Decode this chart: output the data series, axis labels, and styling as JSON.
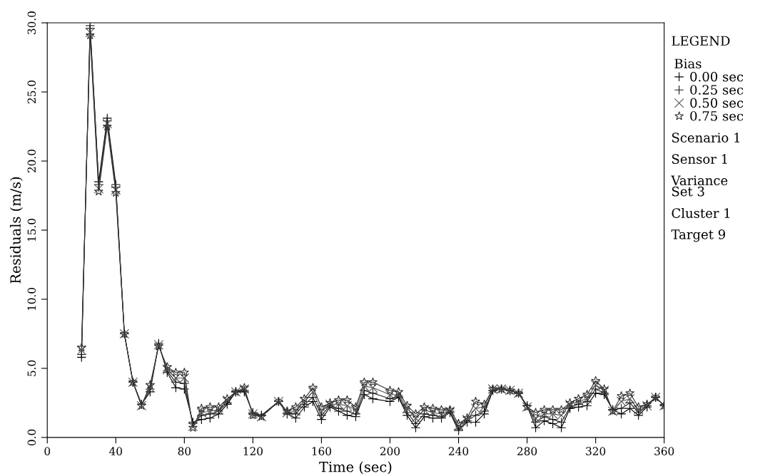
{
  "chart_data": {
    "type": "line",
    "xlabel": "Time (sec)",
    "ylabel": "Residuals (m/s)",
    "legend_title": "Bias",
    "legend": "right",
    "xlim": [
      0,
      360
    ],
    "xticks": [
      0,
      40,
      80,
      120,
      160,
      200,
      240,
      280,
      320,
      360
    ],
    "ylim": [
      0,
      30
    ],
    "yticks": [
      {
        "value": 0,
        "label": "0.0"
      },
      {
        "value": 5,
        "label": "5.0"
      },
      {
        "value": 10,
        "label": "10.0"
      },
      {
        "value": 15,
        "label": "15.0"
      },
      {
        "value": 20,
        "label": "20.0"
      },
      {
        "value": 25,
        "label": "25.0"
      },
      {
        "value": 30,
        "label": "30.0"
      }
    ],
    "grid": false,
    "line_style": "solid",
    "annotations": [
      "LEGEND",
      "Scenario 1",
      "Sensor 1",
      "Variance\nSet 3",
      "Cluster 1",
      "Target 9"
    ],
    "x": [
      20,
      25,
      30,
      35,
      40,
      45,
      50,
      55,
      60,
      65,
      70,
      75,
      80,
      85,
      90,
      95,
      100,
      105,
      110,
      115,
      120,
      125,
      135,
      140,
      145,
      150,
      155,
      160,
      165,
      170,
      175,
      180,
      185,
      190,
      200,
      205,
      210,
      215,
      220,
      225,
      230,
      235,
      240,
      245,
      250,
      255,
      260,
      265,
      270,
      275,
      280,
      285,
      290,
      295,
      300,
      305,
      310,
      315,
      320,
      325,
      330,
      335,
      340,
      345,
      350,
      355,
      360
    ],
    "series": [
      {
        "name": "0.00 sec",
        "color": "#000000",
        "marker": "plus",
        "values": [
          5.8,
          29.8,
          18.5,
          23.1,
          18.3,
          7.5,
          4.0,
          2.4,
          3.3,
          6.8,
          4.7,
          3.6,
          3.5,
          1.1,
          1.3,
          1.4,
          1.7,
          2.4,
          3.3,
          3.3,
          1.8,
          1.6,
          2.6,
          1.7,
          1.4,
          2.2,
          2.6,
          1.3,
          2.2,
          1.9,
          1.6,
          1.5,
          3.1,
          2.8,
          2.6,
          2.9,
          1.6,
          0.7,
          1.5,
          1.4,
          1.4,
          1.8,
          0.5,
          1.1,
          1.1,
          1.7,
          3.4,
          3.5,
          3.4,
          3.2,
          2.3,
          0.7,
          1.2,
          1.0,
          0.7,
          2.1,
          2.2,
          2.3,
          3.2,
          3.1,
          2.0,
          1.7,
          2.1,
          1.6,
          2.2,
          2.9,
          2.3
        ]
      },
      {
        "name": "0.25 sec",
        "color": "#1a1a1a",
        "marker": "plus",
        "values": [
          6.0,
          29.6,
          18.3,
          22.9,
          18.1,
          7.5,
          4.0,
          2.4,
          3.5,
          6.7,
          4.8,
          4.0,
          3.9,
          1.0,
          1.6,
          1.7,
          1.9,
          2.5,
          3.3,
          3.4,
          1.7,
          1.6,
          2.6,
          1.8,
          1.7,
          2.4,
          2.9,
          1.6,
          2.3,
          2.1,
          1.9,
          1.7,
          3.4,
          3.2,
          2.8,
          3.0,
          1.8,
          1.0,
          1.7,
          1.6,
          1.5,
          1.9,
          0.6,
          1.2,
          1.6,
          1.9,
          3.4,
          3.5,
          3.4,
          3.2,
          2.3,
          1.1,
          1.5,
          1.3,
          1.1,
          2.2,
          2.4,
          2.6,
          3.5,
          3.2,
          2.0,
          2.1,
          2.5,
          1.8,
          2.3,
          2.9,
          2.3
        ]
      },
      {
        "name": "0.50 sec",
        "color": "#555555",
        "marker": "cross",
        "values": [
          6.3,
          29.3,
          18.0,
          22.7,
          17.9,
          7.5,
          4.0,
          2.3,
          3.6,
          6.7,
          4.9,
          4.3,
          4.3,
          0.8,
          1.8,
          1.9,
          2.0,
          2.7,
          3.3,
          3.5,
          1.7,
          1.5,
          2.6,
          1.8,
          1.9,
          2.6,
          3.3,
          1.9,
          2.4,
          2.4,
          2.3,
          2.0,
          3.7,
          3.6,
          3.1,
          3.1,
          2.1,
          1.4,
          2.0,
          1.8,
          1.7,
          1.9,
          0.8,
          1.3,
          2.1,
          2.2,
          3.5,
          3.5,
          3.4,
          3.2,
          2.2,
          1.4,
          1.7,
          1.7,
          1.6,
          2.4,
          2.6,
          2.8,
          3.8,
          3.4,
          1.9,
          2.6,
          2.8,
          2.0,
          2.3,
          2.9,
          2.3
        ]
      },
      {
        "name": "0.75 sec",
        "color": "#333333",
        "marker": "star",
        "values": [
          6.5,
          29.1,
          17.8,
          22.5,
          17.7,
          7.5,
          4.0,
          2.3,
          3.8,
          6.6,
          5.1,
          4.7,
          4.7,
          0.7,
          2.1,
          2.2,
          2.2,
          2.8,
          3.3,
          3.6,
          1.6,
          1.5,
          2.6,
          1.9,
          2.2,
          2.8,
          3.6,
          2.2,
          2.5,
          2.7,
          2.7,
          2.2,
          4.0,
          4.0,
          3.4,
          3.3,
          2.3,
          1.7,
          2.2,
          2.1,
          2.0,
          2.0,
          1.0,
          1.4,
          2.6,
          2.4,
          3.5,
          3.5,
          3.4,
          3.2,
          2.2,
          1.8,
          2.0,
          2.0,
          2.0,
          2.5,
          2.8,
          3.1,
          4.1,
          3.5,
          1.9,
          3.0,
          3.2,
          2.2,
          2.4,
          2.9,
          2.3
        ]
      }
    ]
  }
}
